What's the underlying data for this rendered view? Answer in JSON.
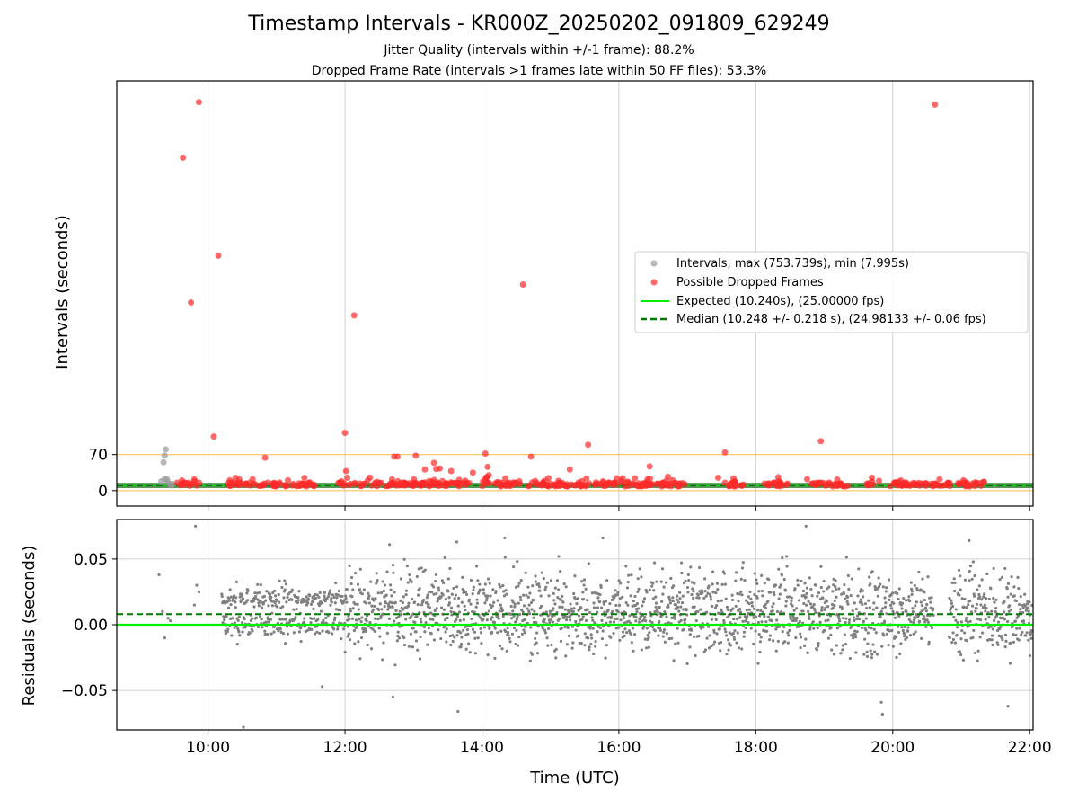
{
  "figure": {
    "title": "Timestamp Intervals - KR000Z_20250202_091809_629249",
    "subtitle_1": "Jitter Quality (intervals within +/-1 frame): 88.2%",
    "subtitle_2": "Dropped Frame Rate (intervals >1 frames late within 50 FF files): 53.3%"
  },
  "colors": {
    "intervals": "#999999",
    "dropped": "#ff2a2a",
    "expected": "#00ee00",
    "median": "#007a00",
    "threshold": "#ffb733",
    "residuals": "#808080",
    "grid": "#d0d0d0",
    "band": "#2e7d32"
  },
  "legend": {
    "entries": [
      "Intervals, max (753.739s), min (7.995s)",
      "Possible Dropped Frames",
      "Expected (10.240s), (25.00000 fps)",
      "Median (10.248 +/- 0.218 s), (24.98133 +/- 0.06 fps)"
    ],
    "placement": "center-right"
  },
  "chart_data": [
    {
      "type": "scatter",
      "panel": "intervals",
      "ylabel": "Intervals (seconds)",
      "xlim": [
        "08:40",
        "22:03"
      ],
      "ylim": [
        -30,
        795
      ],
      "y_ticks": [
        "0",
        "70"
      ],
      "x_ticks": [
        "10:00",
        "12:00",
        "14:00",
        "16:00",
        "18:00",
        "20:00",
        "22:00"
      ],
      "grid": "vertical",
      "threshold_lines": [
        0,
        70
      ],
      "expected": 10.24,
      "median": 10.248,
      "series": [
        {
          "name": "Intervals, max (753.739s), min (7.995s)",
          "points": [
            [
              "09:19",
              18
            ],
            [
              "09:21",
              55
            ],
            [
              "09:22",
              22
            ],
            [
              "09:22",
              68
            ],
            [
              "09:23",
              80
            ],
            [
              "09:24",
              22
            ],
            [
              "09:25",
              16
            ],
            [
              "09:26",
              12
            ],
            [
              "09:28",
              10
            ],
            [
              "09:29",
              13
            ]
          ]
        },
        {
          "name": "Possible Dropped Frames",
          "points": [
            [
              "09:52",
              753.7
            ],
            [
              "09:38",
              646
            ],
            [
              "10:09",
              456
            ],
            [
              "09:45",
              365
            ],
            [
              "12:08",
              340
            ],
            [
              "14:36",
              400
            ],
            [
              "20:37",
              749
            ],
            [
              "10:05",
              105
            ],
            [
              "12:00",
              112
            ],
            [
              "18:57",
              96
            ],
            [
              "15:33",
              89
            ],
            [
              "14:03",
              72
            ],
            [
              "17:33",
              74
            ],
            [
              "12:43",
              66
            ],
            [
              "12:46",
              66
            ],
            [
              "13:02",
              68
            ],
            [
              "10:50",
              64
            ],
            [
              "14:43",
              66
            ],
            [
              "14:05",
              46
            ],
            [
              "13:18",
              54
            ],
            [
              "13:20",
              42
            ],
            [
              "13:23",
              43
            ],
            [
              "13:10",
              41
            ],
            [
              "12:01",
              38
            ],
            [
              "12:02",
              25
            ],
            [
              "13:33",
              38
            ],
            [
              "13:52",
              35
            ],
            [
              "14:06",
              30
            ],
            [
              "14:04",
              26
            ],
            [
              "15:17",
              41
            ],
            [
              "16:27",
              47
            ],
            [
              "15:58",
              24
            ],
            [
              "16:14",
              24
            ],
            [
              "16:43",
              27
            ],
            [
              "17:27",
              25
            ],
            [
              "18:45",
              22
            ],
            [
              "12:20",
              20
            ],
            [
              "10:24",
              25
            ],
            [
              "10:39",
              22
            ],
            [
              "11:10",
              20
            ],
            [
              "20:41",
              22
            ],
            [
              "21:02",
              20
            ],
            [
              "19:48",
              19
            ],
            [
              "10:19",
              20
            ],
            [
              "11:57",
              18
            ],
            [
              "13:40",
              21
            ],
            [
              "20:05",
              17
            ],
            [
              "21:20",
              17
            ],
            [
              "15:46",
              18
            ],
            [
              "17:42",
              17
            ]
          ]
        },
        {
          "name": "Expected (10.240s), (25.00000 fps)",
          "y": 10.24
        },
        {
          "name": "Median (10.248 +/- 0.218 s), (24.98133 +/- 0.06 fps)",
          "y": 10.248,
          "spread": 0.218
        }
      ]
    },
    {
      "type": "scatter",
      "panel": "residuals",
      "xlabel": "Time (UTC)",
      "ylabel": "Residuals (seconds)",
      "xlim": [
        "08:40",
        "22:03"
      ],
      "ylim": [
        -0.08,
        0.08
      ],
      "y_ticks": [
        "−0.05",
        "0.00",
        "0.05"
      ],
      "x_ticks": [
        "10:00",
        "12:00",
        "14:00",
        "16:00",
        "18:00",
        "20:00",
        "22:00"
      ],
      "grid": "both",
      "expected": 0.0,
      "median": 0.008,
      "series": [
        {
          "name": "Residuals",
          "points": [
            [
              "09:17",
              0.038
            ],
            [
              "09:20",
              0.01
            ],
            [
              "09:22",
              -0.01
            ],
            [
              "09:25",
              0.005
            ],
            [
              "09:27",
              0.003
            ],
            [
              "09:49",
              0.075
            ],
            [
              "09:50",
              0.03
            ],
            [
              "09:52",
              0.025
            ],
            [
              "09:48",
              0.015
            ],
            [
              "10:31",
              -0.078
            ],
            [
              "11:40",
              -0.047
            ],
            [
              "12:42",
              -0.055
            ],
            [
              "13:39",
              -0.066
            ],
            [
              "19:50",
              -0.059
            ],
            [
              "19:51",
              -0.068
            ],
            [
              "21:41",
              -0.062
            ],
            [
              "18:44",
              0.075
            ],
            [
              "21:07",
              0.064
            ],
            [
              "14:20",
              0.066
            ],
            [
              "15:46",
              0.066
            ],
            [
              "12:39",
              0.061
            ],
            [
              "13:38",
              0.063
            ]
          ],
          "note_dense": "about 2500 residual points spread between -0.04 and 0.05 from 10:12 to 22:03"
        },
        {
          "name": "Expected",
          "y": 0.0
        },
        {
          "name": "Median",
          "y": 0.008
        }
      ]
    }
  ]
}
